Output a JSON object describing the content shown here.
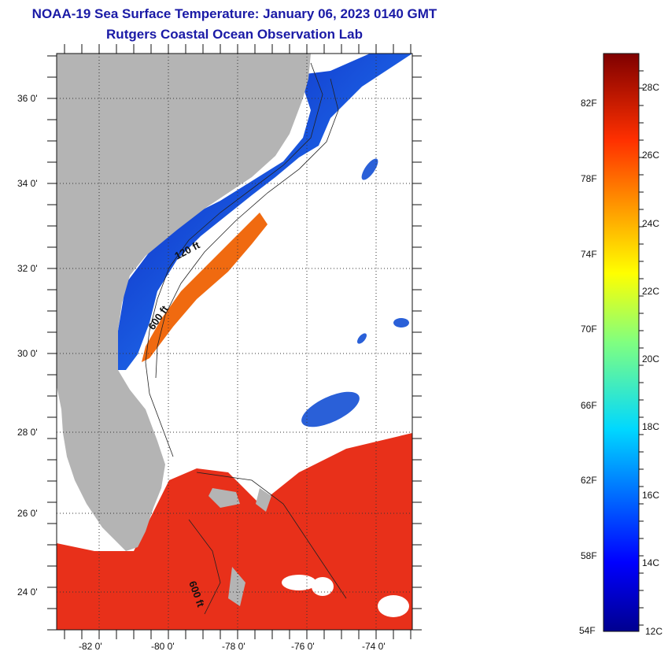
{
  "header": {
    "title": "NOAA-19 Sea Surface Temperature:  January 06, 2023 0140 GMT",
    "subtitle": "Rutgers Coastal Ocean Observation Lab"
  },
  "map": {
    "latitude_labels": [
      "36 0'",
      "34 0'",
      "32 0'",
      "30 0'",
      "28 0'",
      "26 0'",
      "24 0'"
    ],
    "longitude_labels": [
      "-82 0'",
      "-80 0'",
      "-78 0'",
      "-76 0'",
      "-74 0'"
    ],
    "contour_labels": [
      "120 ft",
      "600 ft",
      "600 ft"
    ],
    "colors": {
      "land": "#b4b4b4",
      "clouds": "#ffffff",
      "warm": "#e8301a",
      "cold": "#1020c8"
    }
  },
  "colorbar": {
    "fahrenheit_labels": [
      "82F",
      "78F",
      "74F",
      "70F",
      "66F",
      "62F",
      "58F",
      "54F"
    ],
    "celsius_labels": [
      "28C",
      "26C",
      "24C",
      "22C",
      "20C",
      "18C",
      "16C",
      "14C",
      "12C"
    ],
    "min_color": "#00008f",
    "max_color": "#7f0000"
  }
}
